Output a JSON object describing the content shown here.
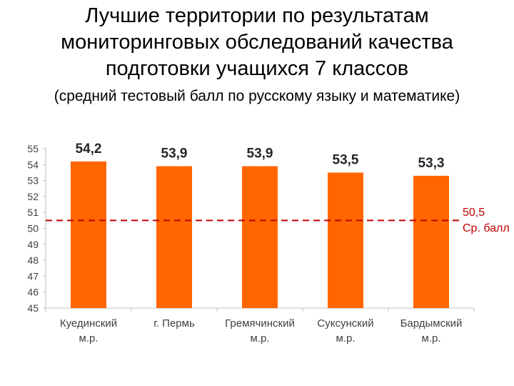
{
  "title_lines": [
    "Лучшие территории по результатам",
    "мониторинговых обследований качества",
    "подготовки учащихся 7 классов"
  ],
  "subtitle": "(средний тестовый балл по русскому языку и математике)",
  "colors": {
    "bar": "#ff6600",
    "average_line": "#c00000",
    "axis": "#bfbfbf",
    "text": "#000000"
  },
  "average": {
    "value": 50.5,
    "value_label": "50,5",
    "label": "Ср. балл"
  },
  "chart_data": {
    "type": "bar",
    "title": "Лучшие территории по результатам мониторинговых обследований качества подготовки учащихся 7 классов",
    "subtitle": "(средний тестовый балл по русскому языку и математике)",
    "categories": [
      [
        "Куединский",
        "м.р."
      ],
      [
        "г. Пермь"
      ],
      [
        "Гремячинский",
        "м.р."
      ],
      [
        "Суксунский",
        "м.р."
      ],
      [
        "Бардымский",
        "м.р."
      ]
    ],
    "values": [
      54.2,
      53.9,
      53.9,
      53.5,
      53.3
    ],
    "value_labels": [
      "54,2",
      "53,9",
      "53,9",
      "53,5",
      "53,3"
    ],
    "ylim": [
      45,
      55
    ],
    "y_ticks": [
      45,
      46,
      47,
      48,
      49,
      50,
      51,
      52,
      53,
      54,
      55
    ],
    "reference_line": {
      "value": 50.5,
      "label": "50,5",
      "sublabel": "Ср. балл"
    },
    "grid": false,
    "legend": "none"
  }
}
